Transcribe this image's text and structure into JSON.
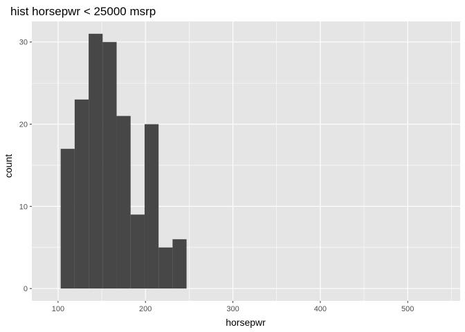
{
  "chart_data": {
    "type": "bar",
    "title": "hist horsepwr < 25000 msrp",
    "xlabel": "horsepwr",
    "ylabel": "count",
    "xlim": [
      70,
      560
    ],
    "ylim": [
      -1.5,
      32.5
    ],
    "x_ticks": [
      100,
      200,
      300,
      400,
      500
    ],
    "y_ticks": [
      0,
      10,
      20,
      30
    ],
    "grid": true,
    "bins": [
      {
        "x0": 103,
        "x1": 119,
        "count": 17
      },
      {
        "x0": 119,
        "x1": 135,
        "count": 23
      },
      {
        "x0": 135,
        "x1": 151,
        "count": 31
      },
      {
        "x0": 151,
        "x1": 167,
        "count": 30
      },
      {
        "x0": 167,
        "x1": 183,
        "count": 21
      },
      {
        "x0": 183,
        "x1": 199,
        "count": 9
      },
      {
        "x0": 199,
        "x1": 215,
        "count": 20
      },
      {
        "x0": 215,
        "x1": 231,
        "count": 5
      },
      {
        "x0": 231,
        "x1": 247,
        "count": 6
      }
    ],
    "colors": {
      "panel": "#e5e5e5",
      "grid": "#ffffff",
      "bar": "#474747",
      "tick_label": "#4d4d4d",
      "tick_mark": "#333333"
    }
  }
}
